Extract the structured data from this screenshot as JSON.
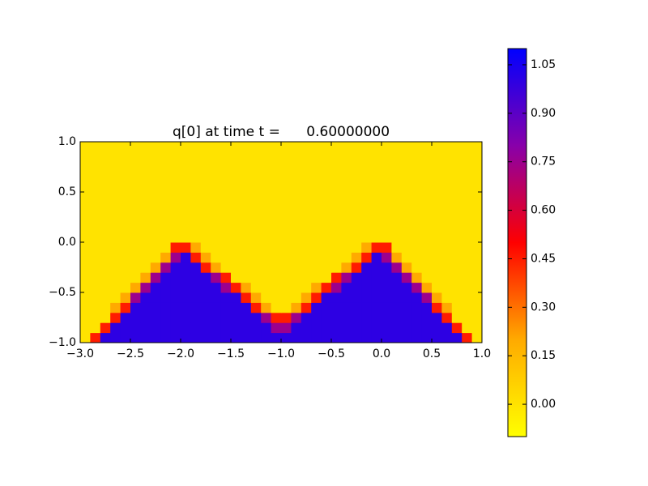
{
  "chart_data": {
    "type": "heatmap",
    "title": "q[0] at time t =      0.60000000",
    "x": [
      -2.95,
      -2.85,
      -2.75,
      -2.65,
      -2.55,
      -2.45,
      -2.35,
      -2.25,
      -2.15,
      -2.05,
      -1.95,
      -1.85,
      -1.75,
      -1.65,
      -1.55,
      -1.45,
      -1.35,
      -1.25,
      -1.15,
      -1.05,
      -0.95,
      -0.85,
      -0.75,
      -0.65,
      -0.55,
      -0.45,
      -0.35,
      -0.25,
      -0.15,
      -0.05,
      0.05,
      0.15,
      0.25,
      0.35,
      0.45,
      0.55,
      0.65,
      0.75,
      0.85,
      0.95
    ],
    "y": [
      -0.95,
      -0.85,
      -0.75,
      -0.65,
      -0.55,
      -0.45,
      -0.35,
      -0.25,
      -0.15,
      -0.05,
      0.05,
      0.15,
      0.25,
      0.35,
      0.45,
      0.55,
      0.65,
      0.75,
      0.85,
      0.95
    ],
    "z": [
      [
        0,
        0.45,
        1,
        1,
        1,
        1,
        1,
        1,
        1,
        1,
        1,
        1,
        1,
        1,
        1,
        1,
        1,
        1,
        1,
        1,
        1,
        1,
        1,
        1,
        1,
        1,
        1,
        1,
        1,
        1,
        1,
        1,
        1,
        1,
        1,
        1,
        1,
        1,
        0.45,
        0
      ],
      [
        0,
        0,
        0.45,
        1,
        1,
        1,
        1,
        1,
        1,
        1,
        1,
        1,
        1,
        1,
        1,
        1,
        1,
        1,
        1,
        0.75,
        0.75,
        1,
        1,
        1,
        1,
        1,
        1,
        1,
        1,
        1,
        1,
        1,
        1,
        1,
        1,
        1,
        1,
        0.45,
        0,
        0
      ],
      [
        0,
        0,
        0,
        0.45,
        1,
        1,
        1,
        1,
        1,
        1,
        1,
        1,
        1,
        1,
        1,
        1,
        1,
        1,
        0.75,
        0.45,
        0.45,
        0.75,
        1,
        1,
        1,
        1,
        1,
        1,
        1,
        1,
        1,
        1,
        1,
        1,
        1,
        1,
        0.45,
        0,
        0,
        0
      ],
      [
        0,
        0,
        0,
        0.2,
        0.45,
        1,
        1,
        1,
        1,
        1,
        1,
        1,
        1,
        1,
        1,
        1,
        1,
        0.45,
        0.2,
        0,
        0,
        0.2,
        0.45,
        1,
        1,
        1,
        1,
        1,
        1,
        1,
        1,
        1,
        1,
        1,
        1,
        0.45,
        0.2,
        0,
        0,
        0
      ],
      [
        0,
        0,
        0,
        0,
        0.2,
        0.75,
        1,
        1,
        1,
        1,
        1,
        1,
        1,
        1,
        1,
        1,
        0.45,
        0.2,
        0,
        0,
        0,
        0,
        0.2,
        0.45,
        1,
        1,
        1,
        1,
        1,
        1,
        1,
        1,
        1,
        1,
        0.75,
        0.2,
        0,
        0,
        0,
        0
      ],
      [
        0,
        0,
        0,
        0,
        0,
        0.2,
        0.75,
        1,
        1,
        1,
        1,
        1,
        1,
        1,
        0.75,
        0.45,
        0.2,
        0,
        0,
        0,
        0,
        0,
        0,
        0.2,
        0.45,
        0.75,
        1,
        1,
        1,
        1,
        1,
        1,
        1,
        0.75,
        0.2,
        0,
        0,
        0,
        0,
        0
      ],
      [
        0,
        0,
        0,
        0,
        0,
        0,
        0.2,
        0.75,
        1,
        1,
        1,
        1,
        1,
        0.75,
        0.45,
        0,
        0,
        0,
        0,
        0,
        0,
        0,
        0,
        0,
        0,
        0.45,
        0.75,
        1,
        1,
        1,
        1,
        1,
        0.75,
        0.2,
        0,
        0,
        0,
        0,
        0,
        0
      ],
      [
        0,
        0,
        0,
        0,
        0,
        0,
        0,
        0.2,
        0.75,
        1,
        1,
        1,
        0.45,
        0.2,
        0,
        0,
        0,
        0,
        0,
        0,
        0,
        0,
        0,
        0,
        0,
        0,
        0.2,
        0.45,
        1,
        1,
        1,
        0.75,
        0.2,
        0,
        0,
        0,
        0,
        0,
        0,
        0
      ],
      [
        0,
        0,
        0,
        0,
        0,
        0,
        0,
        0,
        0.2,
        0.75,
        1,
        0.45,
        0.2,
        0,
        0,
        0,
        0,
        0,
        0,
        0,
        0,
        0,
        0,
        0,
        0,
        0,
        0,
        0.2,
        0.45,
        1,
        0.75,
        0.2,
        0,
        0,
        0,
        0,
        0,
        0,
        0,
        0
      ],
      [
        0,
        0,
        0,
        0,
        0,
        0,
        0,
        0,
        0,
        0.45,
        0.45,
        0.2,
        0,
        0,
        0,
        0,
        0,
        0,
        0,
        0,
        0,
        0,
        0,
        0,
        0,
        0,
        0,
        0,
        0.2,
        0.45,
        0.45,
        0,
        0,
        0,
        0,
        0,
        0,
        0,
        0,
        0
      ],
      [
        0,
        0,
        0,
        0,
        0,
        0,
        0,
        0,
        0,
        0,
        0,
        0,
        0,
        0,
        0,
        0,
        0,
        0,
        0,
        0,
        0,
        0,
        0,
        0,
        0,
        0,
        0,
        0,
        0,
        0,
        0,
        0,
        0,
        0,
        0,
        0,
        0,
        0,
        0,
        0
      ],
      [
        0,
        0,
        0,
        0,
        0,
        0,
        0,
        0,
        0,
        0,
        0,
        0,
        0,
        0,
        0,
        0,
        0,
        0,
        0,
        0,
        0,
        0,
        0,
        0,
        0,
        0,
        0,
        0,
        0,
        0,
        0,
        0,
        0,
        0,
        0,
        0,
        0,
        0,
        0,
        0
      ],
      [
        0,
        0,
        0,
        0,
        0,
        0,
        0,
        0,
        0,
        0,
        0,
        0,
        0,
        0,
        0,
        0,
        0,
        0,
        0,
        0,
        0,
        0,
        0,
        0,
        0,
        0,
        0,
        0,
        0,
        0,
        0,
        0,
        0,
        0,
        0,
        0,
        0,
        0,
        0,
        0
      ],
      [
        0,
        0,
        0,
        0,
        0,
        0,
        0,
        0,
        0,
        0,
        0,
        0,
        0,
        0,
        0,
        0,
        0,
        0,
        0,
        0,
        0,
        0,
        0,
        0,
        0,
        0,
        0,
        0,
        0,
        0,
        0,
        0,
        0,
        0,
        0,
        0,
        0,
        0,
        0,
        0
      ],
      [
        0,
        0,
        0,
        0,
        0,
        0,
        0,
        0,
        0,
        0,
        0,
        0,
        0,
        0,
        0,
        0,
        0,
        0,
        0,
        0,
        0,
        0,
        0,
        0,
        0,
        0,
        0,
        0,
        0,
        0,
        0,
        0,
        0,
        0,
        0,
        0,
        0,
        0,
        0,
        0
      ],
      [
        0,
        0,
        0,
        0,
        0,
        0,
        0,
        0,
        0,
        0,
        0,
        0,
        0,
        0,
        0,
        0,
        0,
        0,
        0,
        0,
        0,
        0,
        0,
        0,
        0,
        0,
        0,
        0,
        0,
        0,
        0,
        0,
        0,
        0,
        0,
        0,
        0,
        0,
        0,
        0
      ],
      [
        0,
        0,
        0,
        0,
        0,
        0,
        0,
        0,
        0,
        0,
        0,
        0,
        0,
        0,
        0,
        0,
        0,
        0,
        0,
        0,
        0,
        0,
        0,
        0,
        0,
        0,
        0,
        0,
        0,
        0,
        0,
        0,
        0,
        0,
        0,
        0,
        0,
        0,
        0,
        0
      ],
      [
        0,
        0,
        0,
        0,
        0,
        0,
        0,
        0,
        0,
        0,
        0,
        0,
        0,
        0,
        0,
        0,
        0,
        0,
        0,
        0,
        0,
        0,
        0,
        0,
        0,
        0,
        0,
        0,
        0,
        0,
        0,
        0,
        0,
        0,
        0,
        0,
        0,
        0,
        0,
        0
      ],
      [
        0,
        0,
        0,
        0,
        0,
        0,
        0,
        0,
        0,
        0,
        0,
        0,
        0,
        0,
        0,
        0,
        0,
        0,
        0,
        0,
        0,
        0,
        0,
        0,
        0,
        0,
        0,
        0,
        0,
        0,
        0,
        0,
        0,
        0,
        0,
        0,
        0,
        0,
        0,
        0
      ],
      [
        0,
        0,
        0,
        0,
        0,
        0,
        0,
        0,
        0,
        0,
        0,
        0,
        0,
        0,
        0,
        0,
        0,
        0,
        0,
        0,
        0,
        0,
        0,
        0,
        0,
        0,
        0,
        0,
        0,
        0,
        0,
        0,
        0,
        0,
        0,
        0,
        0,
        0,
        0,
        0
      ]
    ],
    "xlim": [
      -3,
      1
    ],
    "ylim": [
      -1,
      1
    ],
    "xticks": [
      {
        "value": -3,
        "label": "−3.0"
      },
      {
        "value": -2.5,
        "label": "−2.5"
      },
      {
        "value": -2,
        "label": "−2.0"
      },
      {
        "value": -1.5,
        "label": "−1.5"
      },
      {
        "value": -1,
        "label": "−1.0"
      },
      {
        "value": -0.5,
        "label": "−0.5"
      },
      {
        "value": 0,
        "label": "0.0"
      },
      {
        "value": 0.5,
        "label": "0.5"
      },
      {
        "value": 1,
        "label": "1.0"
      }
    ],
    "yticks": [
      {
        "value": -1,
        "label": "−1.0"
      },
      {
        "value": -0.5,
        "label": "−0.5"
      },
      {
        "value": 0,
        "label": "0.0"
      },
      {
        "value": 0.5,
        "label": "0.5"
      },
      {
        "value": 1,
        "label": "1.0"
      }
    ],
    "clim": [
      -0.1,
      1.1
    ],
    "cticks": [
      {
        "value": 0,
        "label": "0.00"
      },
      {
        "value": 0.15,
        "label": "0.15"
      },
      {
        "value": 0.3,
        "label": "0.30"
      },
      {
        "value": 0.45,
        "label": "0.45"
      },
      {
        "value": 0.6,
        "label": "0.60"
      },
      {
        "value": 0.75,
        "label": "0.75"
      },
      {
        "value": 0.9,
        "label": "0.90"
      },
      {
        "value": 1.05,
        "label": "1.05"
      }
    ],
    "colormap": [
      "#ffff00",
      "#ffaa00",
      "#ff0000",
      "#8800aa",
      "#0000ff"
    ]
  }
}
